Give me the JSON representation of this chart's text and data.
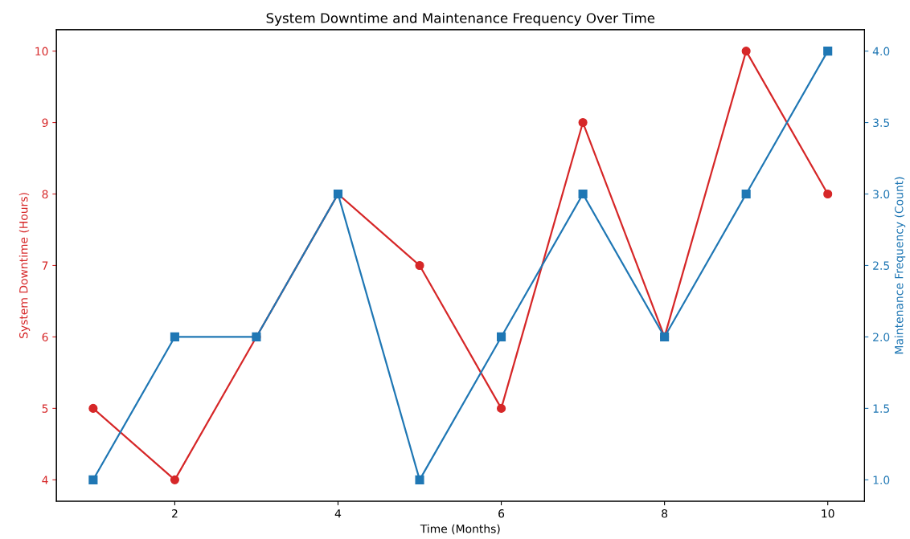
{
  "chart_data": {
    "type": "line",
    "title": "System Downtime and Maintenance Frequency Over Time",
    "xlabel": "Time (Months)",
    "ylabel": "System Downtime (Hours)",
    "y2label": "Maintenance Frequency (Count)",
    "x": [
      1,
      2,
      3,
      4,
      5,
      6,
      7,
      8,
      9,
      10
    ],
    "series": [
      {
        "color": "#d62728",
        "marker": "circle",
        "values": [
          5,
          4,
          6,
          8,
          7,
          5,
          9,
          6,
          10,
          8
        ]
      },
      {
        "color": "#1f77b4",
        "marker": "square",
        "axis": "y2",
        "values": [
          1,
          2,
          2,
          3,
          1,
          2,
          3,
          2,
          3,
          4
        ]
      }
    ],
    "xlim": [
      0.55,
      10.45
    ],
    "xticks": [
      2,
      4,
      6,
      8,
      10
    ],
    "ylim": [
      3.7,
      10.3
    ],
    "yticks": [
      4,
      5,
      6,
      7,
      8,
      9,
      10
    ],
    "y2lim": [
      0.85,
      4.15
    ],
    "y2ticks": [
      {
        "value": 1,
        "label": "1.0"
      },
      {
        "value": 1.5,
        "label": "1.5"
      },
      {
        "value": 2,
        "label": "2.0"
      },
      {
        "value": 2.5,
        "label": "2.5"
      },
      {
        "value": 3,
        "label": "3.0"
      },
      {
        "value": 3.5,
        "label": "3.5"
      },
      {
        "value": 4,
        "label": "4.0"
      }
    ],
    "grid": false,
    "legend": false
  }
}
